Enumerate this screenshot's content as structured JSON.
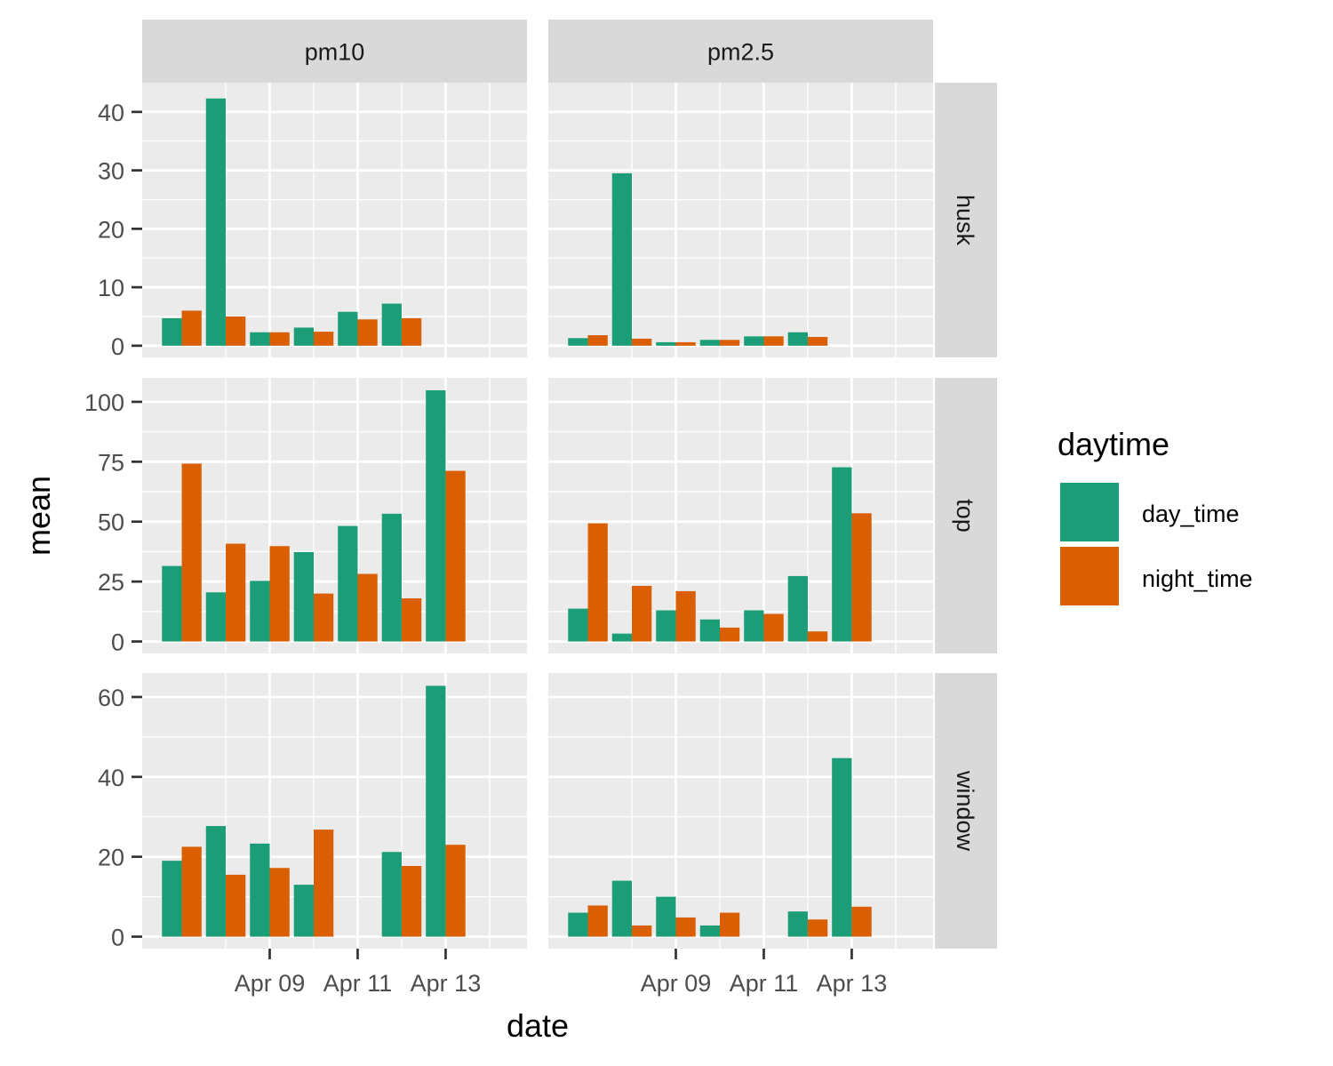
{
  "chart_data": {
    "type": "bar",
    "layout": "facet_grid",
    "xlabel": "date",
    "ylabel": "mean",
    "dates": [
      "2023-04-07",
      "2023-04-08",
      "2023-04-09",
      "2023-04-10",
      "2023-04-11",
      "2023-04-12",
      "2023-04-13",
      "2023-04-14"
    ],
    "x_tick_labels": [
      "Apr 09",
      "Apr 11",
      "Apr 13"
    ],
    "x_tick_dates": [
      "2023-04-09",
      "2023-04-11",
      "2023-04-13"
    ],
    "columns": [
      "pm10",
      "pm2.5"
    ],
    "rows": [
      {
        "name": "husk",
        "ylim": [
          -2,
          45
        ],
        "yticks": [
          0,
          10,
          20,
          30,
          40
        ]
      },
      {
        "name": "top",
        "ylim": [
          -5,
          110
        ],
        "yticks": [
          0,
          25,
          50,
          75,
          100
        ]
      },
      {
        "name": "window",
        "ylim": [
          -3,
          66
        ],
        "yticks": [
          0,
          20,
          40,
          60
        ]
      }
    ],
    "legend": {
      "title": "daytime",
      "position": "right",
      "entries": [
        {
          "name": "day_time",
          "color": "#1b9e77"
        },
        {
          "name": "night_time",
          "color": "#d95f02"
        }
      ]
    },
    "panels": [
      {
        "row": "husk",
        "col": "pm10",
        "day_time": [
          4.7,
          42.3,
          2.3,
          3.1,
          5.8,
          7.2,
          null,
          null
        ],
        "night_time": [
          6.0,
          5.0,
          2.3,
          2.4,
          4.5,
          4.7,
          null,
          null
        ]
      },
      {
        "row": "husk",
        "col": "pm2.5",
        "day_time": [
          1.3,
          29.5,
          0.6,
          1.0,
          1.6,
          2.3,
          null,
          null
        ],
        "night_time": [
          1.8,
          1.2,
          0.6,
          1.0,
          1.6,
          1.5,
          null,
          null
        ]
      },
      {
        "row": "top",
        "col": "pm10",
        "day_time": [
          31.5,
          20.5,
          25.3,
          37.3,
          48.2,
          53.3,
          104.8,
          null
        ],
        "night_time": [
          74.2,
          40.8,
          39.8,
          20.0,
          28.2,
          18.0,
          71.2,
          null
        ]
      },
      {
        "row": "top",
        "col": "pm2.5",
        "day_time": [
          13.7,
          3.3,
          13.0,
          9.2,
          13.0,
          27.3,
          72.7,
          null
        ],
        "night_time": [
          49.3,
          23.2,
          21.0,
          5.8,
          11.5,
          4.2,
          53.5,
          null
        ]
      },
      {
        "row": "window",
        "col": "pm10",
        "day_time": [
          19.0,
          27.7,
          23.3,
          13.0,
          null,
          21.2,
          62.8,
          null
        ],
        "night_time": [
          22.5,
          15.5,
          17.2,
          26.8,
          null,
          17.7,
          23.0,
          null
        ]
      },
      {
        "row": "window",
        "col": "pm2.5",
        "day_time": [
          6.0,
          14.0,
          10.0,
          2.8,
          null,
          6.3,
          44.7,
          null
        ],
        "night_time": [
          7.8,
          2.8,
          4.8,
          6.0,
          null,
          4.3,
          7.5,
          null
        ]
      }
    ],
    "colors": {
      "panel_background": "#ebebeb",
      "grid_major": "#ffffff",
      "strip_background": "#d9d9d9"
    }
  }
}
